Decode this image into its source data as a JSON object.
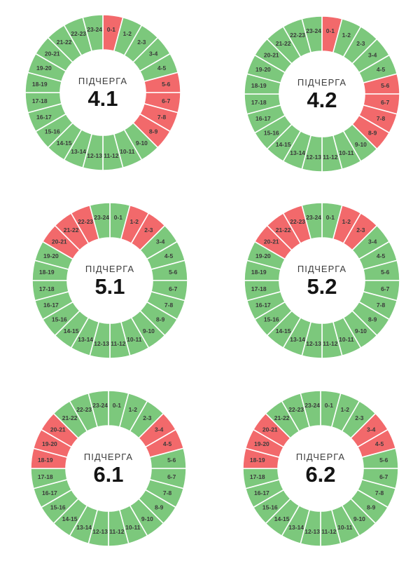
{
  "colors": {
    "green": "#7cc87c",
    "red": "#f2696b",
    "segment_border": "#ffffff",
    "hour_label": "#3a3a3a",
    "center_label_color": "#3c3c3c",
    "center_value_color": "#141414",
    "background": "#ffffff"
  },
  "chart_data": {
    "type": "pie",
    "variant": "donut-24h-clock",
    "segment_value_hours": 1,
    "segments_per_chart": 24,
    "categories": [
      "0-1",
      "1-2",
      "2-3",
      "3-4",
      "4-5",
      "5-6",
      "6-7",
      "7-8",
      "8-9",
      "9-10",
      "10-11",
      "11-12",
      "12-13",
      "13-14",
      "14-15",
      "15-16",
      "16-17",
      "17-18",
      "18-19",
      "19-20",
      "20-21",
      "21-22",
      "22-23",
      "23-24"
    ],
    "charts": [
      {
        "center_label": "ПІДЧЕРГА",
        "center_value": "4.1",
        "red_segments": [
          "0-1",
          "5-6",
          "6-7",
          "7-8",
          "8-9"
        ]
      },
      {
        "center_label": "ПІДЧЕРГА",
        "center_value": "4.2",
        "red_segments": [
          "0-1",
          "5-6",
          "6-7",
          "7-8",
          "8-9"
        ]
      },
      {
        "center_label": "ПІДЧЕРГА",
        "center_value": "5.1",
        "red_segments": [
          "1-2",
          "2-3",
          "20-21",
          "21-22",
          "22-23"
        ]
      },
      {
        "center_label": "ПІДЧЕРГА",
        "center_value": "5.2",
        "red_segments": [
          "1-2",
          "2-3",
          "20-21",
          "21-22",
          "22-23"
        ]
      },
      {
        "center_label": "ПІДЧЕРГА",
        "center_value": "6.1",
        "red_segments": [
          "3-4",
          "4-5",
          "18-19",
          "19-20",
          "20-21"
        ]
      },
      {
        "center_label": "ПІДЧЕРГА",
        "center_value": "6.2",
        "red_segments": [
          "3-4",
          "4-5",
          "18-19",
          "19-20",
          "20-21"
        ]
      }
    ]
  }
}
